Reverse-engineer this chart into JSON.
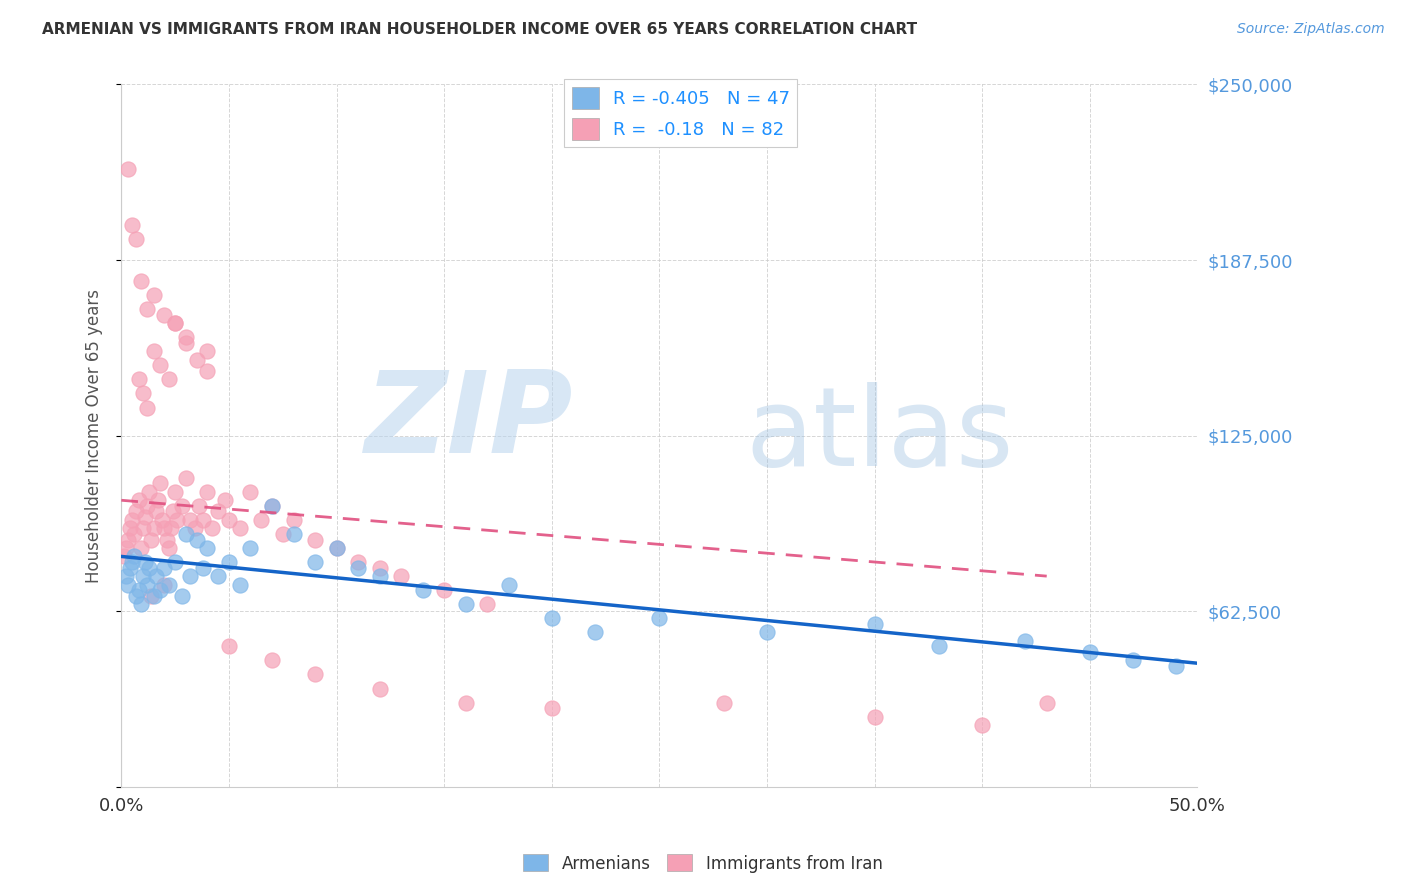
{
  "title": "ARMENIAN VS IMMIGRANTS FROM IRAN HOUSEHOLDER INCOME OVER 65 YEARS CORRELATION CHART",
  "source": "Source: ZipAtlas.com",
  "ylabel": "Householder Income Over 65 years",
  "xlim": [
    0.0,
    0.5
  ],
  "ylim": [
    0,
    250000
  ],
  "yticks": [
    0,
    62500,
    125000,
    187500,
    250000
  ],
  "ytick_labels": [
    "",
    "$62,500",
    "$125,000",
    "$187,500",
    "$250,000"
  ],
  "background_color": "#ffffff",
  "grid_color": "#cccccc",
  "armenian_color": "#7EB6E8",
  "iran_color": "#F5A0B5",
  "armenian_line_color": "#1464C8",
  "iran_line_color": "#E05080",
  "r_armenian": -0.405,
  "n_armenian": 47,
  "r_iran": -0.18,
  "n_iran": 82,
  "armenian_x": [
    0.002,
    0.003,
    0.004,
    0.005,
    0.006,
    0.007,
    0.008,
    0.009,
    0.01,
    0.011,
    0.012,
    0.013,
    0.015,
    0.016,
    0.018,
    0.02,
    0.022,
    0.025,
    0.028,
    0.03,
    0.032,
    0.035,
    0.038,
    0.04,
    0.045,
    0.05,
    0.055,
    0.06,
    0.07,
    0.08,
    0.09,
    0.1,
    0.11,
    0.12,
    0.14,
    0.16,
    0.18,
    0.2,
    0.22,
    0.25,
    0.3,
    0.35,
    0.38,
    0.42,
    0.45,
    0.47,
    0.49
  ],
  "armenian_y": [
    75000,
    72000,
    78000,
    80000,
    82000,
    68000,
    70000,
    65000,
    75000,
    80000,
    72000,
    78000,
    68000,
    75000,
    70000,
    78000,
    72000,
    80000,
    68000,
    90000,
    75000,
    88000,
    78000,
    85000,
    75000,
    80000,
    72000,
    85000,
    100000,
    90000,
    80000,
    85000,
    78000,
    75000,
    70000,
    65000,
    72000,
    60000,
    55000,
    60000,
    55000,
    58000,
    50000,
    52000,
    48000,
    45000,
    43000
  ],
  "iran_x": [
    0.001,
    0.002,
    0.003,
    0.004,
    0.005,
    0.006,
    0.007,
    0.008,
    0.009,
    0.01,
    0.011,
    0.012,
    0.013,
    0.014,
    0.015,
    0.016,
    0.017,
    0.018,
    0.019,
    0.02,
    0.021,
    0.022,
    0.023,
    0.024,
    0.025,
    0.026,
    0.028,
    0.03,
    0.032,
    0.034,
    0.036,
    0.038,
    0.04,
    0.042,
    0.045,
    0.048,
    0.05,
    0.055,
    0.06,
    0.065,
    0.07,
    0.075,
    0.08,
    0.09,
    0.1,
    0.11,
    0.12,
    0.13,
    0.15,
    0.17,
    0.008,
    0.01,
    0.012,
    0.015,
    0.018,
    0.022,
    0.025,
    0.03,
    0.035,
    0.04,
    0.003,
    0.005,
    0.007,
    0.009,
    0.012,
    0.015,
    0.02,
    0.025,
    0.03,
    0.04,
    0.05,
    0.07,
    0.09,
    0.12,
    0.16,
    0.2,
    0.28,
    0.35,
    0.4,
    0.43,
    0.014,
    0.02
  ],
  "iran_y": [
    82000,
    85000,
    88000,
    92000,
    95000,
    90000,
    98000,
    102000,
    85000,
    92000,
    96000,
    100000,
    105000,
    88000,
    92000,
    98000,
    102000,
    108000,
    95000,
    92000,
    88000,
    85000,
    92000,
    98000,
    105000,
    95000,
    100000,
    110000,
    95000,
    92000,
    100000,
    95000,
    105000,
    92000,
    98000,
    102000,
    95000,
    92000,
    105000,
    95000,
    100000,
    90000,
    95000,
    88000,
    85000,
    80000,
    78000,
    75000,
    70000,
    65000,
    145000,
    140000,
    135000,
    155000,
    150000,
    145000,
    165000,
    158000,
    152000,
    148000,
    220000,
    200000,
    195000,
    180000,
    170000,
    175000,
    168000,
    165000,
    160000,
    155000,
    50000,
    45000,
    40000,
    35000,
    30000,
    28000,
    30000,
    25000,
    22000,
    30000,
    68000,
    72000
  ]
}
